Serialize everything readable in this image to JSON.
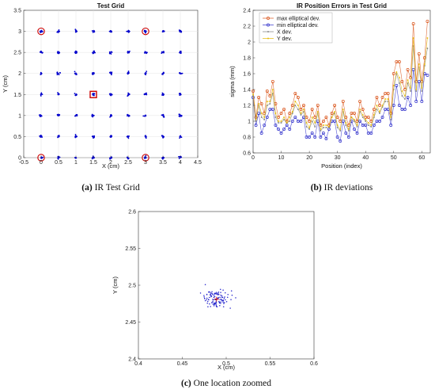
{
  "chart_data": [
    {
      "type": "scatter",
      "title": "Test Grid",
      "xlabel": "X (cm)",
      "ylabel": "Y (cm)",
      "xlim": [
        -0.5,
        4.5
      ],
      "ylim": [
        0,
        3.5
      ],
      "xticks": [
        "-0.5",
        "0",
        "0.5",
        "1",
        "1.5",
        "2",
        "2.5",
        "3",
        "3.5",
        "4",
        "4.5"
      ],
      "yticks": [
        "0",
        "0.5",
        "1",
        "1.5",
        "2",
        "2.5",
        "3",
        "3.5"
      ],
      "grid": true,
      "grid_x": [
        0,
        0.5,
        1,
        1.5,
        2,
        2.5,
        3,
        3.5,
        4
      ],
      "grid_y": [
        0,
        0.5,
        1,
        1.5,
        2,
        2.5,
        3
      ],
      "marked_circles": [
        [
          0,
          0
        ],
        [
          3,
          0
        ],
        [
          0,
          3
        ],
        [
          3,
          3
        ]
      ],
      "marked_square": [
        1.5,
        1.5
      ],
      "point_color": "#0000cc",
      "marker_color": "#cc0000",
      "caption_label": "(a)",
      "caption_text": " IR Test Grid"
    },
    {
      "type": "line",
      "title": "IR Position Errors in Test Grid",
      "xlabel": "Position (index)",
      "ylabel": "sigma (mm)",
      "xlim": [
        0,
        63
      ],
      "ylim": [
        0.6,
        2.4
      ],
      "xticks": [
        "0",
        "10",
        "20",
        "30",
        "40",
        "50",
        "60"
      ],
      "yticks": [
        "0.6",
        "0.8",
        "1",
        "1.2",
        "1.4",
        "1.6",
        "1.8",
        "2",
        "2.2",
        "2.4"
      ],
      "legend_position": "top-left",
      "series": [
        {
          "name": "max elliptical dev.",
          "color": "#d95319",
          "values": [
            1.38,
            1.05,
            1.3,
            1.22,
            1.1,
            1.38,
            1.32,
            1.5,
            1.22,
            1.05,
            1.1,
            1.15,
            1.0,
            1.1,
            1.2,
            1.35,
            1.3,
            1.15,
            1.2,
            1.05,
            1.0,
            1.15,
            1.05,
            1.2,
            0.95,
            1.0,
            1.05,
            0.95,
            1.1,
            1.2,
            1.05,
            1.0,
            1.25,
            1.05,
            0.95,
            1.1,
            1.1,
            1.0,
            1.25,
            1.15,
            1.05,
            1.05,
            1.0,
            1.15,
            1.3,
            1.2,
            1.3,
            1.35,
            1.35,
            1.1,
            1.6,
            1.75,
            1.75,
            1.5,
            1.4,
            1.65,
            1.55,
            2.23,
            1.5,
            1.85,
            1.5,
            1.8,
            2.26
          ]
        },
        {
          "name": "min elliptical dev.",
          "color": "#3333cc",
          "values": [
            1.3,
            0.95,
            1.1,
            0.85,
            0.95,
            1.05,
            1.15,
            1.15,
            0.95,
            0.9,
            0.85,
            0.9,
            0.95,
            0.9,
            1.0,
            1.05,
            1.0,
            1.0,
            1.05,
            0.8,
            0.8,
            0.85,
            0.8,
            1.0,
            0.8,
            0.85,
            0.78,
            0.9,
            1.0,
            1.0,
            0.8,
            0.75,
            1.0,
            0.85,
            0.8,
            1.0,
            0.9,
            0.85,
            1.0,
            0.95,
            0.95,
            0.85,
            0.85,
            0.95,
            1.0,
            1.0,
            1.05,
            1.15,
            1.15,
            0.95,
            1.2,
            1.45,
            1.2,
            1.15,
            1.15,
            1.3,
            1.2,
            1.65,
            1.25,
            1.5,
            1.25,
            1.6,
            1.58
          ]
        },
        {
          "name": "X dev.",
          "color": "#808080",
          "values": [
            1.32,
            1.0,
            1.2,
            1.05,
            1.02,
            1.2,
            1.22,
            1.35,
            1.05,
            0.98,
            0.98,
            1.02,
            0.98,
            1.0,
            1.1,
            1.2,
            1.15,
            1.08,
            1.12,
            0.93,
            0.9,
            1.0,
            0.93,
            1.1,
            0.88,
            0.92,
            0.92,
            0.92,
            1.05,
            1.1,
            0.92,
            0.88,
            1.12,
            0.95,
            0.88,
            1.05,
            1.0,
            0.93,
            1.12,
            1.05,
            1.0,
            0.95,
            0.93,
            1.05,
            1.15,
            1.1,
            1.18,
            1.25,
            1.25,
            1.02,
            1.4,
            1.6,
            1.48,
            1.32,
            1.28,
            1.48,
            1.38,
            1.95,
            1.38,
            1.68,
            1.38,
            1.7,
            1.92
          ]
        },
        {
          "name": "Y dev.",
          "color": "#e6b800",
          "values": [
            1.34,
            1.02,
            1.22,
            1.1,
            1.05,
            1.25,
            1.25,
            1.4,
            1.1,
            1.0,
            1.0,
            1.05,
            0.98,
            1.05,
            1.12,
            1.25,
            1.2,
            1.1,
            1.15,
            0.98,
            0.92,
            1.05,
            0.98,
            1.12,
            0.9,
            0.95,
            0.95,
            0.93,
            1.05,
            1.12,
            0.95,
            0.9,
            1.15,
            0.98,
            0.9,
            1.05,
            1.02,
            0.95,
            1.15,
            1.08,
            1.02,
            0.98,
            0.95,
            1.08,
            1.2,
            1.12,
            1.2,
            1.28,
            1.28,
            1.05,
            1.45,
            1.62,
            1.55,
            1.38,
            1.32,
            1.52,
            1.42,
            2.05,
            1.4,
            1.72,
            1.42,
            1.72,
            2.05
          ]
        }
      ],
      "caption_label": "(b)",
      "caption_text": " IR deviations"
    },
    {
      "type": "scatter",
      "xlabel": "X (cm)",
      "ylabel": "Y (cm)",
      "xlim": [
        0.4,
        0.6
      ],
      "ylim": [
        2.4,
        2.6
      ],
      "xticks": [
        "0.4",
        "0.45",
        "0.5",
        "0.55",
        "0.6"
      ],
      "yticks": [
        "2.4",
        "2.45",
        "2.5",
        "2.55",
        "2.6"
      ],
      "grid": false,
      "cluster_center": [
        0.488,
        2.482
      ],
      "center_marker": [
        0.489,
        2.481
      ],
      "point_color": "#2222cc",
      "marker_color": "#cc0000",
      "caption_label": "(c)",
      "caption_text": " One location zoomed"
    }
  ]
}
